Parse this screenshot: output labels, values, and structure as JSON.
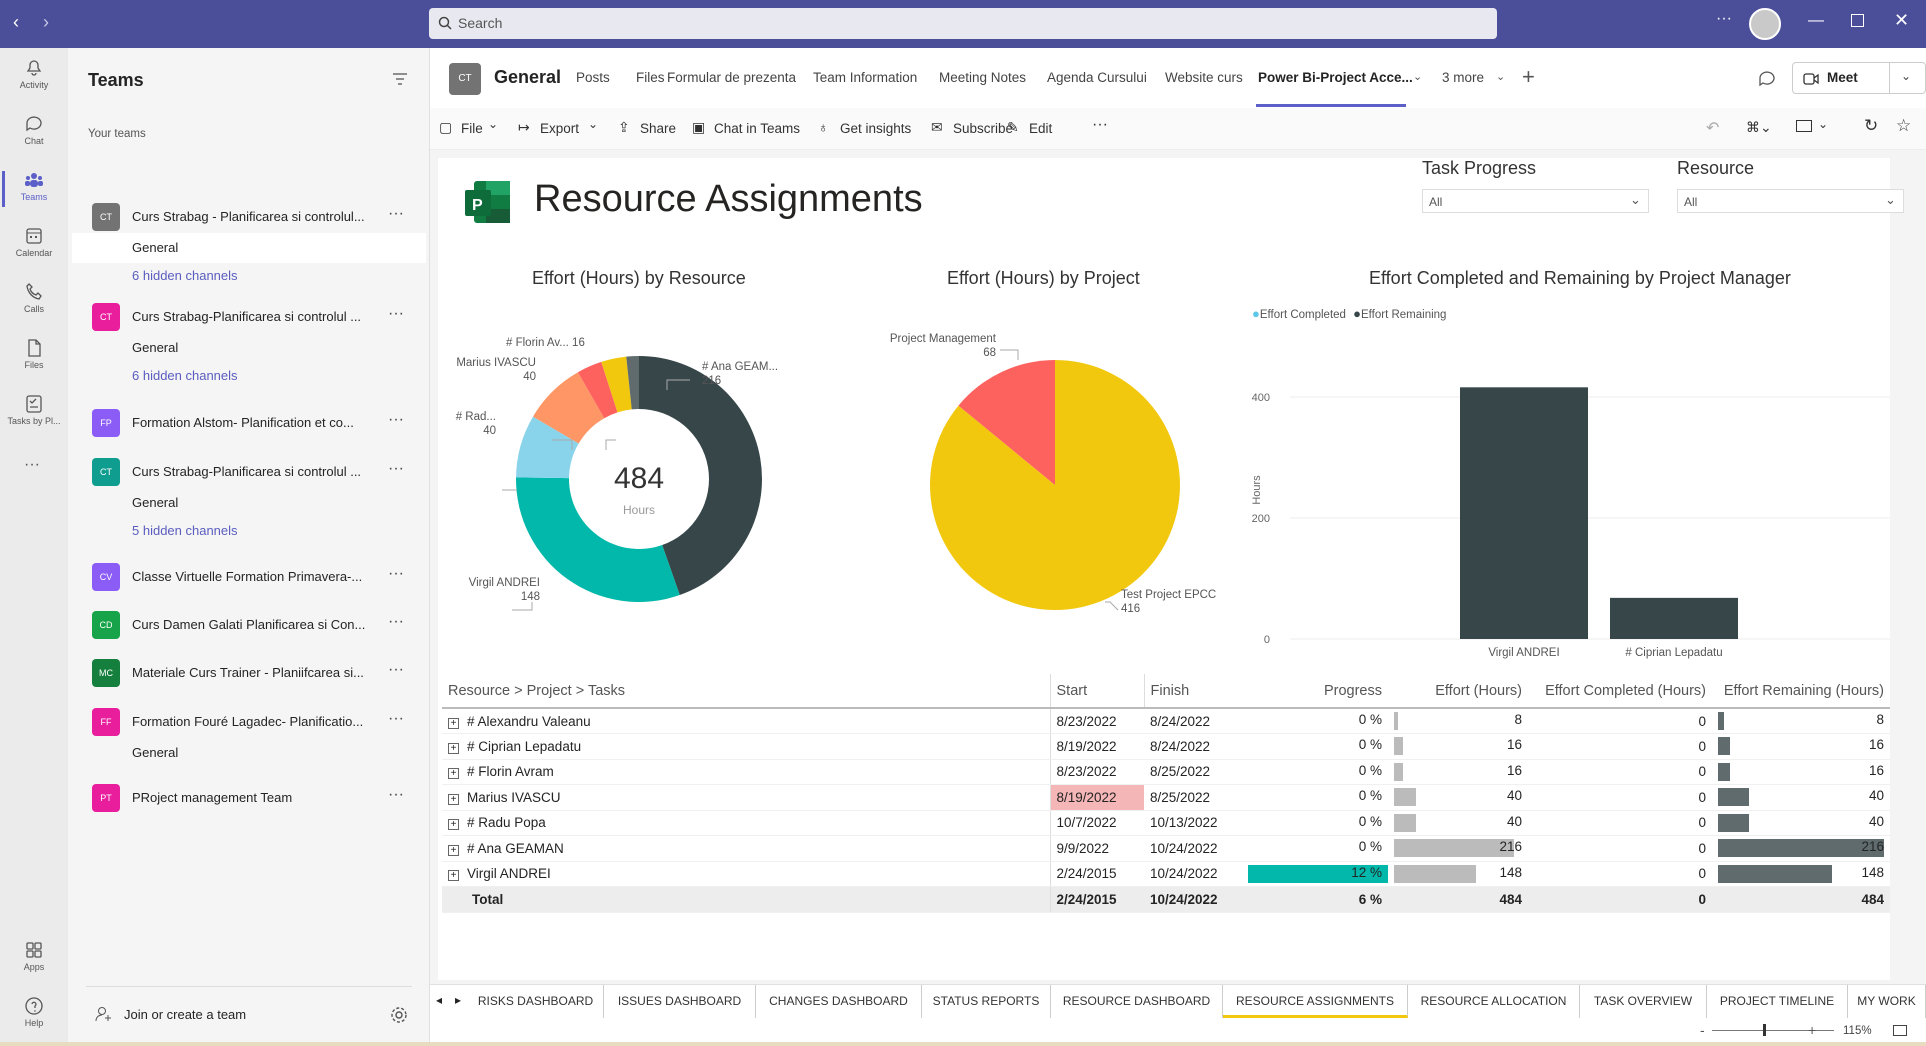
{
  "app": {
    "search_placeholder": "Search",
    "meet_label": "Meet"
  },
  "rail": [
    {
      "label": "Activity",
      "icon": "bell-icon"
    },
    {
      "label": "Chat",
      "icon": "chat-icon"
    },
    {
      "label": "Teams",
      "icon": "teams-icon"
    },
    {
      "label": "Calendar",
      "icon": "calendar-icon"
    },
    {
      "label": "Calls",
      "icon": "phone-icon"
    },
    {
      "label": "Files",
      "icon": "file-icon"
    },
    {
      "label": "Tasks by Pl...",
      "icon": "tasks-icon"
    },
    {
      "label": "Apps",
      "icon": "apps-icon"
    },
    {
      "label": "Help",
      "icon": "help-icon"
    }
  ],
  "sidebar": {
    "title": "Teams",
    "section": "Your teams",
    "join_label": "Join or create a team",
    "teams": [
      {
        "abbr": "CT",
        "name": "Curs Strabag - Planificarea si controlul...",
        "color": "#737373",
        "channels": [
          "General"
        ],
        "hidden": "6 hidden channels"
      },
      {
        "abbr": "CT",
        "name": "Curs Strabag-Planificarea si controlul ...",
        "color": "#e91e9c",
        "channels": [
          "General"
        ],
        "hidden": "6 hidden channels"
      },
      {
        "abbr": "FP",
        "name": "Formation Alstom- Planification et co...",
        "color": "#8b5cf6"
      },
      {
        "abbr": "CT",
        "name": "Curs Strabag-Planificarea si controlul ...",
        "color": "#0f9d8f",
        "channels": [
          "General"
        ],
        "hidden": "5 hidden channels"
      },
      {
        "abbr": "CV",
        "name": "Classe Virtuelle Formation Primavera-...",
        "color": "#8b5cf6"
      },
      {
        "abbr": "CD",
        "name": "Curs Damen Galati Planificarea si Con...",
        "color": "#16a34a"
      },
      {
        "abbr": "MC",
        "name": "Materiale Curs Trainer - Planiifcarea si...",
        "color": "#15803d"
      },
      {
        "abbr": "FF",
        "name": "Formation Fouré Lagadec- Planificatio...",
        "color": "#e91e9c",
        "channels": [
          "General"
        ]
      },
      {
        "abbr": "PT",
        "name": "PRoject management Team",
        "color": "#e91e9c"
      }
    ]
  },
  "channel": {
    "abbr": "CT",
    "name": "General",
    "tabs": [
      "Posts",
      "Files",
      "Formular de prezenta",
      "Team Information",
      "Meeting Notes",
      "Agenda Cursului",
      "Website curs",
      "Power Bi-Project Acce...",
      "3 more"
    ]
  },
  "toolbar": [
    "File",
    "Export",
    "Share",
    "Chat in Teams",
    "Get insights",
    "Subscribe",
    "Edit"
  ],
  "report": {
    "title": "Resource Assignments",
    "filters": [
      {
        "label": "Task Progress",
        "value": "All"
      },
      {
        "label": "Resource",
        "value": "All"
      }
    ],
    "bottom_tabs": [
      "RISKS DASHBOARD",
      "ISSUES DASHBOARD",
      "CHANGES DASHBOARD",
      "STATUS REPORTS",
      "RESOURCE DASHBOARD",
      "RESOURCE ASSIGNMENTS",
      "RESOURCE ALLOCATION",
      "TASK OVERVIEW",
      "PROJECT TIMELINE",
      "MY WORK"
    ],
    "zoom": "115%"
  },
  "chart_data": [
    {
      "type": "pie",
      "title": "Effort (Hours) by Resource",
      "donut": true,
      "center_value": "484",
      "center_label": "Hours",
      "slices": [
        {
          "label": "# Ana GEAM...",
          "value": 216,
          "color": "#374649"
        },
        {
          "label": "Virgil ANDREI",
          "value": 148,
          "color": "#01b8aa"
        },
        {
          "label": "# Rad...",
          "value": 40,
          "color": "#8ad4eb"
        },
        {
          "label": "Marius IVASCU",
          "value": 40,
          "color": "#fe9666"
        },
        {
          "label": "",
          "value": 16,
          "color": "#fd625e"
        },
        {
          "label": "# Florin Av... 16",
          "value": 16,
          "color": "#f2c80f"
        },
        {
          "label": "",
          "value": 8,
          "color": "#5f6b6d"
        }
      ]
    },
    {
      "type": "pie",
      "title": "Effort (Hours) by Project",
      "slices": [
        {
          "label": "Test Project EPCC",
          "value": 416,
          "color": "#f2c80f"
        },
        {
          "label": "Project Management",
          "value": 68,
          "color": "#fd625e"
        }
      ]
    },
    {
      "type": "bar",
      "title": "Effort Completed and Remaining by Project Manager",
      "ylabel": "Hours",
      "ylim": [
        0,
        400
      ],
      "yticks": [
        "0",
        "200",
        "400"
      ],
      "categories": [
        "Virgil ANDREI",
        "# Ciprian Lepadatu"
      ],
      "series": [
        {
          "name": "Effort Completed",
          "color": "#5bc8e8",
          "values": [
            0,
            0
          ]
        },
        {
          "name": "Effort Remaining",
          "color": "#374649",
          "values": [
            416,
            68
          ]
        }
      ]
    },
    {
      "type": "table",
      "columns": [
        "Resource > Project > Tasks",
        "Start",
        "Finish",
        "Progress",
        "Effort (Hours)",
        "Effort Completed (Hours)",
        "Effort Remaining (Hours)"
      ],
      "rows": [
        {
          "name": "# Alexandru Valeanu",
          "start": "8/23/2022",
          "finish": "8/24/2022",
          "progress": "0 %",
          "p": 0,
          "effort": "8",
          "e": 8,
          "completed": "0",
          "remaining": "8",
          "r": 8
        },
        {
          "name": "# Ciprian Lepadatu",
          "start": "8/19/2022",
          "finish": "8/24/2022",
          "progress": "0 %",
          "p": 0,
          "effort": "16",
          "e": 16,
          "completed": "0",
          "remaining": "16",
          "r": 16
        },
        {
          "name": "# Florin Avram",
          "start": "8/23/2022",
          "finish": "8/25/2022",
          "progress": "0 %",
          "p": 0,
          "effort": "16",
          "e": 16,
          "completed": "0",
          "remaining": "16",
          "r": 16
        },
        {
          "name": "Marius IVASCU",
          "start": "8/19/2022",
          "finish": "8/25/2022",
          "progress": "0 %",
          "p": 0,
          "effort": "40",
          "e": 40,
          "completed": "0",
          "remaining": "40",
          "r": 40,
          "late": true
        },
        {
          "name": "# Radu Popa",
          "start": "10/7/2022",
          "finish": "10/13/2022",
          "progress": "0 %",
          "p": 0,
          "effort": "40",
          "e": 40,
          "completed": "0",
          "remaining": "40",
          "r": 40
        },
        {
          "name": "# Ana GEAMAN",
          "start": "9/9/2022",
          "finish": "10/24/2022",
          "progress": "0 %",
          "p": 0,
          "effort": "216",
          "e": 216,
          "completed": "0",
          "remaining": "216",
          "r": 216
        },
        {
          "name": "Virgil ANDREI",
          "start": "2/24/2015",
          "finish": "10/24/2022",
          "progress": "12 %",
          "p": 12,
          "effort": "148",
          "e": 148,
          "completed": "0",
          "remaining": "148",
          "r": 148
        }
      ],
      "total": {
        "name": "Total",
        "start": "2/24/2015",
        "finish": "10/24/2022",
        "progress": "6 %",
        "effort": "484",
        "completed": "0",
        "remaining": "484"
      }
    }
  ]
}
